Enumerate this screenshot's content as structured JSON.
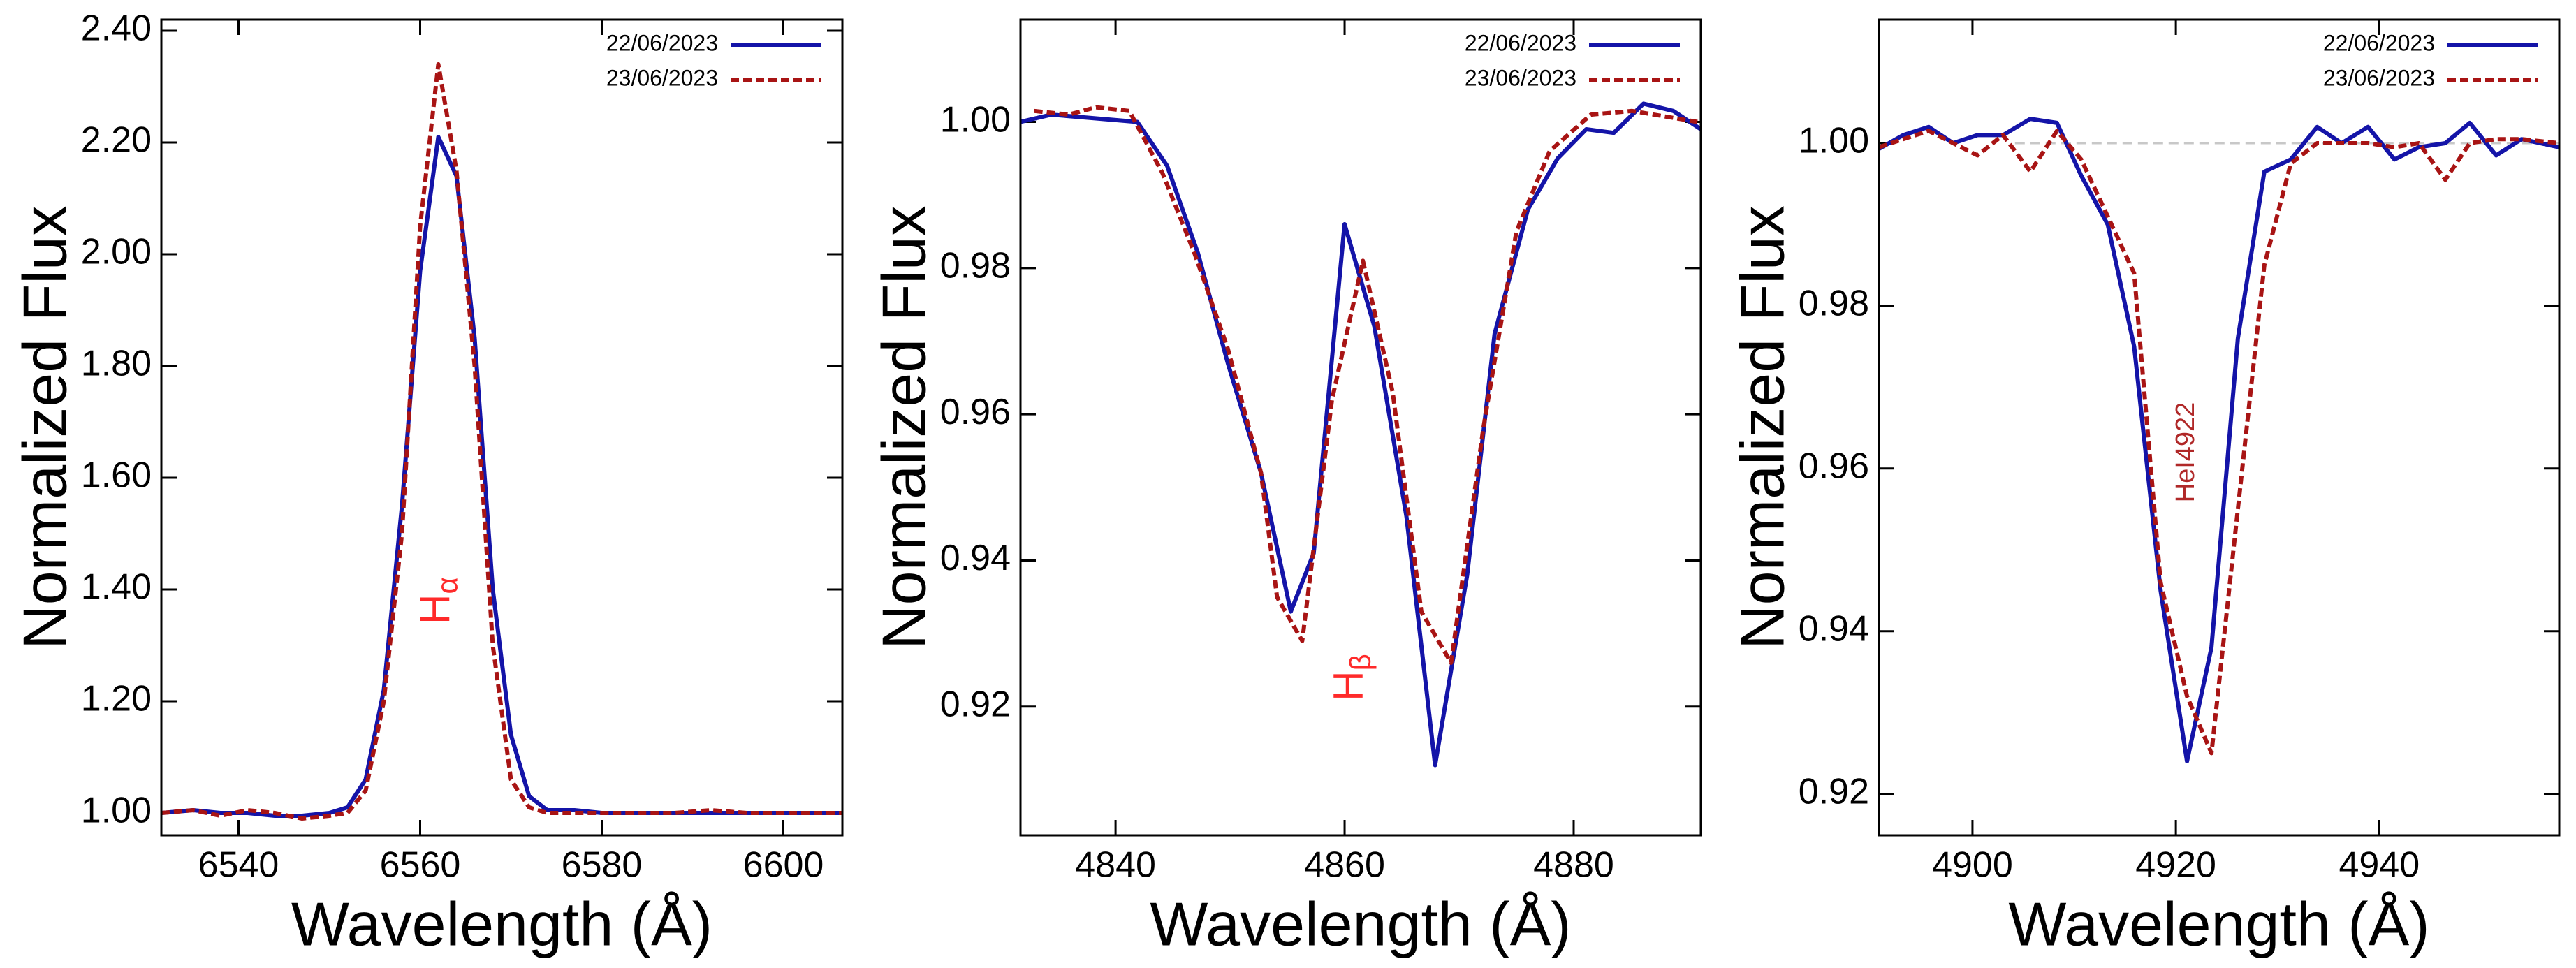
{
  "chart_data": [
    {
      "type": "line",
      "xlabel": "Wavelength (Å)",
      "ylabel": "Normalized Flux",
      "xlim": [
        6531.5,
        6606.5
      ],
      "ylim": [
        0.96,
        2.42
      ],
      "xticks": [
        6540,
        6560,
        6580,
        6600
      ],
      "yticks": [
        {
          "value": 1.0,
          "label": "1.00"
        },
        {
          "value": 1.2,
          "label": "1.20"
        },
        {
          "value": 1.4,
          "label": "1.40"
        },
        {
          "value": 1.6,
          "label": "1.60"
        },
        {
          "value": 1.8,
          "label": "1.80"
        },
        {
          "value": 2.0,
          "label": "2.00"
        },
        {
          "value": 2.2,
          "label": "2.20"
        },
        {
          "value": 2.4,
          "label": "2.40"
        }
      ],
      "legend": "upper right",
      "annotation": {
        "text": "H",
        "subscript": "α",
        "color": "#ff2a2a"
      },
      "x": [
        6531.5,
        6535,
        6538,
        6541,
        6544,
        6547,
        6550,
        6552,
        6554,
        6556,
        6558,
        6560,
        6562,
        6564,
        6566,
        6568,
        6570,
        6572,
        6574,
        6577,
        6580,
        6584,
        6588,
        6592,
        6596,
        6600,
        6606.5
      ],
      "series": [
        {
          "name": "22/06/2023",
          "color": "#1414a8",
          "linestyle": "solid",
          "values": [
            1.0,
            1.005,
            1.0,
            1.0,
            0.995,
            0.995,
            1.0,
            1.01,
            1.06,
            1.22,
            1.55,
            1.97,
            2.21,
            2.14,
            1.85,
            1.4,
            1.14,
            1.03,
            1.005,
            1.005,
            1.0,
            1.0,
            1.0,
            1.0,
            1.0,
            1.0,
            1.0
          ]
        },
        {
          "name": "23/06/2023",
          "color": "#a81414",
          "linestyle": "dashed",
          "values": [
            1.0,
            1.005,
            0.995,
            1.005,
            1.0,
            0.99,
            0.995,
            1.0,
            1.04,
            1.2,
            1.5,
            2.05,
            2.34,
            2.15,
            1.8,
            1.3,
            1.06,
            1.01,
            1.0,
            1.0,
            1.0,
            1.0,
            1.0,
            1.005,
            1.0,
            1.0,
            1.0
          ]
        }
      ]
    },
    {
      "type": "line",
      "xlabel": "Wavelength (Å)",
      "ylabel": "Normalized Flux",
      "xlim": [
        4831.7,
        4891.1
      ],
      "ylim": [
        0.9024,
        1.014
      ],
      "xticks": [
        4840,
        4860,
        4880
      ],
      "yticks": [
        0.92,
        0.94,
        0.96,
        0.98,
        {
          "value": 1.0,
          "label": "1.00"
        }
      ],
      "legend": "upper right",
      "annotation": {
        "text": "H",
        "subscript": "β",
        "color": "#ff2a2a"
      },
      "series": [
        {
          "name": "22/06/2023",
          "color": "#1414a8",
          "linestyle": "solid",
          "x": [
            4831.7,
            4834.4,
            4841.9,
            4844.5,
            4847.2,
            4849.8,
            4852.7,
            4855.3,
            4857.3,
            4860.0,
            4862.6,
            4865.4,
            4867.9,
            4870.7,
            4873.1,
            4876.0,
            4878.6,
            4881.1,
            4883.5,
            4886.1,
            4888.7,
            4891.1
          ],
          "values": [
            1.0,
            1.001,
            1.0,
            0.994,
            0.982,
            0.967,
            0.952,
            0.933,
            0.941,
            0.986,
            0.972,
            0.946,
            0.912,
            0.938,
            0.971,
            0.988,
            0.995,
            0.999,
            0.9985,
            1.0025,
            1.0015,
            0.999
          ]
        },
        {
          "name": "23/06/2023",
          "color": "#a81414",
          "linestyle": "dashed",
          "x": [
            4832.9,
            4835.9,
            4838.3,
            4841.2,
            4844.1,
            4846.9,
            4849.8,
            4852.7,
            4854.1,
            4856.3,
            4858.9,
            4861.6,
            4864.2,
            4866.7,
            4869.3,
            4872.1,
            4875.0,
            4877.9,
            4881.5,
            4885.1,
            4890.8
          ],
          "values": [
            1.0015,
            1.001,
            1.002,
            1.0015,
            0.993,
            0.982,
            0.969,
            0.952,
            0.935,
            0.929,
            0.962,
            0.981,
            0.963,
            0.933,
            0.926,
            0.958,
            0.985,
            0.996,
            1.001,
            1.0015,
            1.0
          ]
        }
      ]
    },
    {
      "type": "line",
      "xlabel": "Wavelength (Å)",
      "ylabel": "Normalized Flux",
      "xlim": [
        4890.8,
        4957.7
      ],
      "ylim": [
        0.9149,
        1.0152
      ],
      "xticks": [
        4900,
        4920,
        4940
      ],
      "yticks": [
        0.92,
        0.94,
        0.96,
        0.98,
        {
          "value": 1.0,
          "label": "1.00"
        }
      ],
      "legend": "upper right",
      "reference_line": 1.0,
      "annotation": {
        "text": "HeI4922",
        "color": "#b02828"
      },
      "x": [
        4890.8,
        4893.2,
        4895.7,
        4898.1,
        4900.5,
        4903.0,
        4905.7,
        4908.3,
        4910.7,
        4913.3,
        4915.9,
        4918.5,
        4921.1,
        4923.5,
        4926.1,
        4928.7,
        4931.3,
        4933.9,
        4936.3,
        4938.9,
        4941.5,
        4943.9,
        4946.5,
        4948.9,
        4951.5,
        4954.0,
        4957.7
      ],
      "series": [
        {
          "name": "22/06/2023",
          "color": "#1414a8",
          "linestyle": "solid",
          "values": [
            0.9993,
            1.001,
            1.002,
            1.0,
            1.001,
            1.001,
            1.003,
            1.0025,
            0.996,
            0.99,
            0.975,
            0.945,
            0.924,
            0.938,
            0.976,
            0.9965,
            0.998,
            1.002,
            1.0,
            1.002,
            0.998,
            0.9995,
            1.0,
            1.0025,
            0.9985,
            1.0005,
            0.9995
          ]
        },
        {
          "name": "23/06/2023",
          "color": "#a81414",
          "linestyle": "dashed",
          "values": [
            0.9995,
            1.0005,
            1.0015,
            1.0,
            0.9985,
            1.001,
            0.9965,
            1.0015,
            0.998,
            0.991,
            0.984,
            0.946,
            0.932,
            0.925,
            0.955,
            0.985,
            0.9975,
            1.0,
            1.0,
            1.0,
            0.9995,
            1.0,
            0.9955,
            1.0,
            1.0005,
            1.0005,
            1.0
          ]
        }
      ]
    }
  ]
}
